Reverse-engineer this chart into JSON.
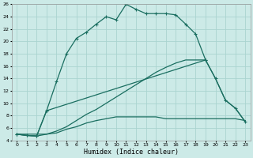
{
  "xlabel": "Humidex (Indice chaleur)",
  "background_color": "#cceae7",
  "grid_color": "#aad4d0",
  "line_color": "#1a6e60",
  "xlim": [
    -0.5,
    23.5
  ],
  "ylim": [
    4,
    26
  ],
  "x_ticks": [
    0,
    1,
    2,
    3,
    4,
    5,
    6,
    7,
    8,
    9,
    10,
    11,
    12,
    13,
    14,
    15,
    16,
    17,
    18,
    19,
    20,
    21,
    22,
    23
  ],
  "y_ticks": [
    4,
    6,
    8,
    10,
    12,
    14,
    16,
    18,
    20,
    22,
    24,
    26
  ],
  "curve1_x": [
    0,
    1,
    2,
    3,
    4,
    5,
    6,
    7,
    8,
    9,
    10,
    11,
    12,
    13,
    14,
    15,
    16,
    17,
    18,
    19
  ],
  "curve1_y": [
    5.0,
    4.8,
    4.7,
    8.8,
    13.5,
    18.0,
    20.5,
    21.5,
    22.8,
    24.0,
    23.5,
    26.0,
    25.2,
    24.5,
    24.5,
    24.5,
    24.3,
    22.8,
    21.2,
    17.0
  ],
  "curve2_x": [
    0,
    1,
    2,
    3,
    19,
    20,
    21,
    22,
    23
  ],
  "curve2_y": [
    5.0,
    4.8,
    4.7,
    8.8,
    17.0,
    14.0,
    10.5,
    9.2,
    7.0
  ],
  "curve3_x": [
    0,
    1,
    2,
    3,
    4,
    5,
    6,
    7,
    8,
    9,
    10,
    11,
    12,
    13,
    14,
    15,
    16,
    17,
    18,
    19,
    20,
    21,
    22,
    23
  ],
  "curve3_y": [
    5.0,
    4.8,
    4.7,
    5.0,
    5.2,
    5.8,
    6.2,
    6.8,
    7.2,
    7.5,
    7.8,
    7.8,
    7.8,
    7.8,
    7.8,
    7.5,
    7.5,
    7.5,
    7.5,
    7.5,
    7.5,
    7.5,
    7.5,
    7.2
  ],
  "curve4_x": [
    0,
    3,
    4,
    5,
    6,
    7,
    8,
    9,
    10,
    11,
    12,
    13,
    14,
    15,
    16,
    17,
    18,
    19,
    20,
    21,
    22,
    23
  ],
  "curve4_y": [
    5.0,
    5.0,
    5.5,
    6.2,
    7.2,
    8.2,
    9.0,
    10.0,
    11.0,
    12.0,
    13.0,
    14.0,
    15.0,
    15.8,
    16.5,
    17.0,
    17.0,
    17.0,
    14.0,
    10.5,
    9.2,
    7.0
  ]
}
